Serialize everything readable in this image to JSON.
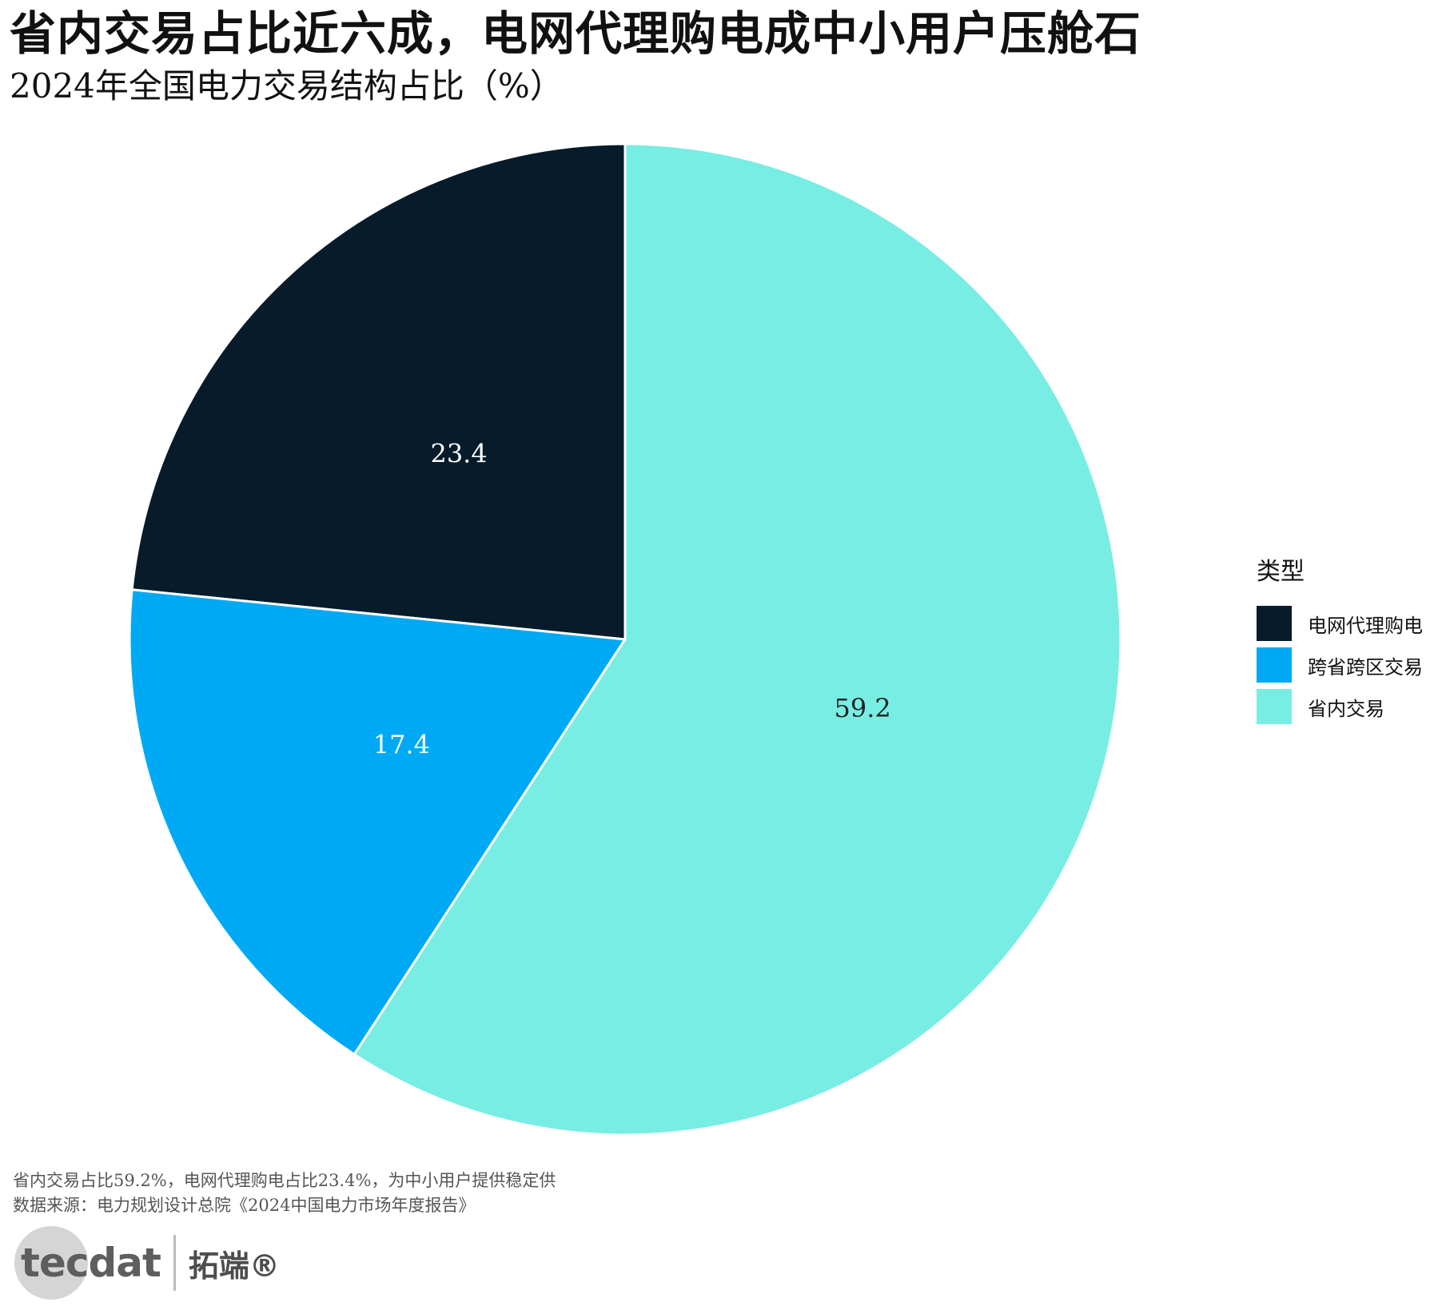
{
  "title": "省内交易占比近六成，电网代理购电成中小用户压舱石",
  "subtitle": "2024年全国电力交易结构占比（%）",
  "chart_data": {
    "type": "pie",
    "categories": [
      "电网代理购电",
      "跨省跨区交易",
      "省内交易"
    ],
    "values": [
      23.4,
      17.4,
      59.2
    ],
    "labels": [
      "23.4",
      "17.4",
      "59.2"
    ],
    "colors": [
      "#071b2a",
      "#00a9f4",
      "#78ede4"
    ],
    "label_colors": [
      "#ffffff",
      "#ffffff",
      "#222222"
    ],
    "start": "12 o'clock",
    "direction": "counter-clockwise"
  },
  "legend": {
    "title": "类型",
    "items": [
      {
        "label": "电网代理购电",
        "color": "#071b2a"
      },
      {
        "label": "跨省跨区交易",
        "color": "#00a9f4"
      },
      {
        "label": "省内交易",
        "color": "#78ede4"
      }
    ]
  },
  "caption": {
    "line1": "省内交易占比59.2%，电网代理购电占比23.4%，为中小用户提供稳定供",
    "line2": "数据来源：电力规划设计总院《2024中国电力市场年度报告》"
  },
  "logo": {
    "en": "tecdat",
    "cn": "拓端®"
  }
}
